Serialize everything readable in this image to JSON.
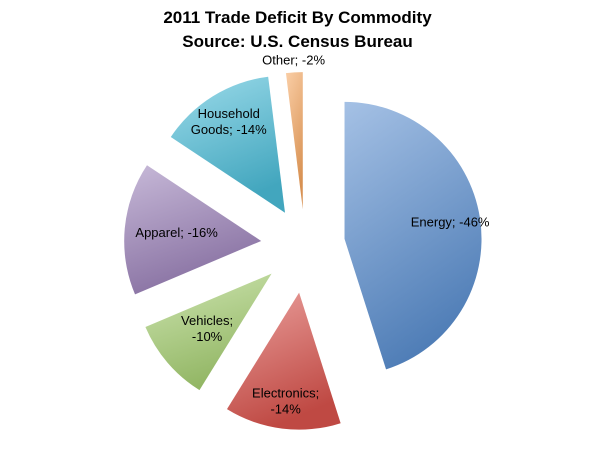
{
  "chart_data": {
    "type": "pie",
    "title": "2011 Trade Deficit By Commodity",
    "subtitle": "Source: U.S. Census Bureau",
    "slices": [
      {
        "name": "Energy",
        "value": -46,
        "label_lines": [
          "Energy; -46%"
        ],
        "color": "#5b8fd0"
      },
      {
        "name": "Electronics",
        "value": -14,
        "label_lines": [
          "Electronics;",
          "-14%"
        ],
        "color": "#d9534c"
      },
      {
        "name": "Vehicles",
        "value": -10,
        "label_lines": [
          "Vehicles;",
          "-10%"
        ],
        "color": "#a6cf72"
      },
      {
        "name": "Apparel",
        "value": -16,
        "label_lines": [
          "Apparel; -16%"
        ],
        "color": "#9a80b8"
      },
      {
        "name": "Household Goods",
        "value": -14,
        "label_lines": [
          "Household",
          "Goods; -14%"
        ],
        "color": "#4bbdd8"
      },
      {
        "name": "Other",
        "value": -2,
        "label_lines": [
          "Other; -2%"
        ],
        "color": "#f5a55d"
      }
    ]
  }
}
